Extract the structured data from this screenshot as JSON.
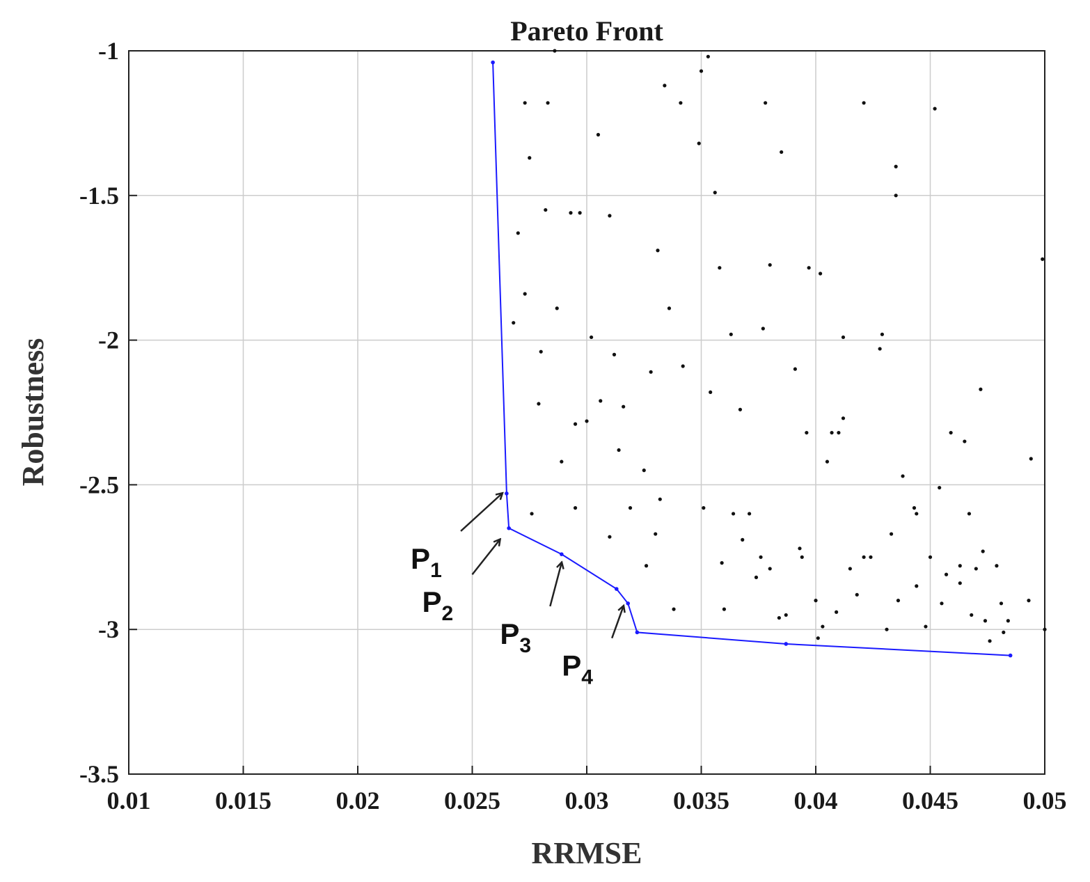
{
  "chart_data": {
    "type": "scatter",
    "title": "Pareto Front",
    "xlabel": "RRMSE",
    "ylabel": "Robustness",
    "xlim": [
      0.01,
      0.05
    ],
    "ylim": [
      -3.5,
      -1
    ],
    "xticks": [
      0.01,
      0.015,
      0.02,
      0.025,
      0.03,
      0.035,
      0.04,
      0.045,
      0.05
    ],
    "xtick_labels": [
      "0.01",
      "0.015",
      "0.02",
      "0.025",
      "0.03",
      "0.035",
      "0.04",
      "0.045",
      "0.05"
    ],
    "yticks": [
      -1,
      -1.5,
      -2,
      -2.5,
      -3,
      -3.5
    ],
    "ytick_labels": [
      "-1",
      "-1.5",
      "-2",
      "-2.5",
      "-3",
      "-3.5"
    ],
    "grid": true,
    "colors": {
      "front": "#1a1aff",
      "points": "#111111",
      "arrows": "#222222"
    },
    "series": [
      {
        "kind": "line",
        "points": [
          [
            0.0259,
            -1.04
          ],
          [
            0.0265,
            -2.53
          ],
          [
            0.0266,
            -2.65
          ],
          [
            0.0289,
            -2.74
          ],
          [
            0.0313,
            -2.86
          ],
          [
            0.0318,
            -2.91
          ],
          [
            0.0322,
            -3.01
          ],
          [
            0.0387,
            -3.05
          ],
          [
            0.0485,
            -3.09
          ]
        ]
      },
      {
        "kind": "points",
        "points": [
          [
            0.0286,
            -1.0
          ],
          [
            0.0353,
            -1.02
          ],
          [
            0.035,
            -1.07
          ],
          [
            0.0334,
            -1.12
          ],
          [
            0.0273,
            -1.18
          ],
          [
            0.0283,
            -1.18
          ],
          [
            0.0341,
            -1.18
          ],
          [
            0.0378,
            -1.18
          ],
          [
            0.0421,
            -1.18
          ],
          [
            0.0452,
            -1.2
          ],
          [
            0.0305,
            -1.29
          ],
          [
            0.0349,
            -1.32
          ],
          [
            0.0275,
            -1.37
          ],
          [
            0.0385,
            -1.35
          ],
          [
            0.0435,
            -1.4
          ],
          [
            0.0356,
            -1.49
          ],
          [
            0.0435,
            -1.5
          ],
          [
            0.0282,
            -1.55
          ],
          [
            0.0293,
            -1.56
          ],
          [
            0.0297,
            -1.56
          ],
          [
            0.031,
            -1.57
          ],
          [
            0.027,
            -1.63
          ],
          [
            0.0331,
            -1.69
          ],
          [
            0.0499,
            -1.72
          ],
          [
            0.0358,
            -1.75
          ],
          [
            0.038,
            -1.74
          ],
          [
            0.0397,
            -1.75
          ],
          [
            0.0402,
            -1.77
          ],
          [
            0.0273,
            -1.84
          ],
          [
            0.0287,
            -1.89
          ],
          [
            0.0336,
            -1.89
          ],
          [
            0.0268,
            -1.94
          ],
          [
            0.0377,
            -1.96
          ],
          [
            0.0363,
            -1.98
          ],
          [
            0.0302,
            -1.99
          ],
          [
            0.0412,
            -1.99
          ],
          [
            0.0429,
            -1.98
          ],
          [
            0.028,
            -2.04
          ],
          [
            0.0312,
            -2.05
          ],
          [
            0.0428,
            -2.03
          ],
          [
            0.0342,
            -2.09
          ],
          [
            0.0328,
            -2.11
          ],
          [
            0.0391,
            -2.1
          ],
          [
            0.0472,
            -2.17
          ],
          [
            0.0354,
            -2.18
          ],
          [
            0.0306,
            -2.21
          ],
          [
            0.0279,
            -2.22
          ],
          [
            0.0316,
            -2.23
          ],
          [
            0.0367,
            -2.24
          ],
          [
            0.0295,
            -2.29
          ],
          [
            0.03,
            -2.28
          ],
          [
            0.0412,
            -2.27
          ],
          [
            0.0396,
            -2.32
          ],
          [
            0.0407,
            -2.32
          ],
          [
            0.041,
            -2.32
          ],
          [
            0.0459,
            -2.32
          ],
          [
            0.0465,
            -2.35
          ],
          [
            0.0314,
            -2.38
          ],
          [
            0.0289,
            -2.42
          ],
          [
            0.0405,
            -2.42
          ],
          [
            0.0494,
            -2.41
          ],
          [
            0.0325,
            -2.45
          ],
          [
            0.0438,
            -2.47
          ],
          [
            0.0454,
            -2.51
          ],
          [
            0.0332,
            -2.55
          ],
          [
            0.0319,
            -2.58
          ],
          [
            0.0295,
            -2.58
          ],
          [
            0.0351,
            -2.58
          ],
          [
            0.0276,
            -2.6
          ],
          [
            0.0364,
            -2.6
          ],
          [
            0.0371,
            -2.6
          ],
          [
            0.0443,
            -2.58
          ],
          [
            0.0444,
            -2.6
          ],
          [
            0.0467,
            -2.6
          ],
          [
            0.031,
            -2.68
          ],
          [
            0.033,
            -2.67
          ],
          [
            0.0368,
            -2.69
          ],
          [
            0.0433,
            -2.67
          ],
          [
            0.0393,
            -2.72
          ],
          [
            0.0473,
            -2.73
          ],
          [
            0.0376,
            -2.75
          ],
          [
            0.0394,
            -2.75
          ],
          [
            0.0421,
            -2.75
          ],
          [
            0.0424,
            -2.75
          ],
          [
            0.045,
            -2.75
          ],
          [
            0.0326,
            -2.78
          ],
          [
            0.0359,
            -2.77
          ],
          [
            0.038,
            -2.79
          ],
          [
            0.0415,
            -2.79
          ],
          [
            0.0463,
            -2.78
          ],
          [
            0.047,
            -2.79
          ],
          [
            0.0479,
            -2.78
          ],
          [
            0.0374,
            -2.82
          ],
          [
            0.0457,
            -2.81
          ],
          [
            0.0444,
            -2.85
          ],
          [
            0.0463,
            -2.84
          ],
          [
            0.0418,
            -2.88
          ],
          [
            0.04,
            -2.9
          ],
          [
            0.0436,
            -2.9
          ],
          [
            0.0455,
            -2.91
          ],
          [
            0.0481,
            -2.91
          ],
          [
            0.0493,
            -2.9
          ],
          [
            0.0338,
            -2.93
          ],
          [
            0.036,
            -2.93
          ],
          [
            0.0409,
            -2.94
          ],
          [
            0.0384,
            -2.96
          ],
          [
            0.0387,
            -2.95
          ],
          [
            0.0468,
            -2.95
          ],
          [
            0.0474,
            -2.97
          ],
          [
            0.0484,
            -2.97
          ],
          [
            0.0401,
            -3.03
          ],
          [
            0.0403,
            -2.99
          ],
          [
            0.0431,
            -3.0
          ],
          [
            0.0448,
            -2.99
          ],
          [
            0.0482,
            -3.01
          ],
          [
            0.05,
            -3.0
          ],
          [
            0.0476,
            -3.04
          ]
        ]
      }
    ],
    "annotations": [
      {
        "base": "P",
        "sub": "1",
        "target": [
          0.0263,
          -2.53
        ],
        "from": [
          0.0245,
          -2.66
        ]
      },
      {
        "base": "P",
        "sub": "2",
        "target": [
          0.0262,
          -2.69
        ],
        "from": [
          0.025,
          -2.81
        ]
      },
      {
        "base": "P",
        "sub": "3",
        "target": [
          0.0289,
          -2.77
        ],
        "from": [
          0.0284,
          -2.92
        ]
      },
      {
        "base": "P",
        "sub": "4",
        "target": [
          0.0316,
          -2.92
        ],
        "from": [
          0.0311,
          -3.03
        ]
      }
    ]
  }
}
